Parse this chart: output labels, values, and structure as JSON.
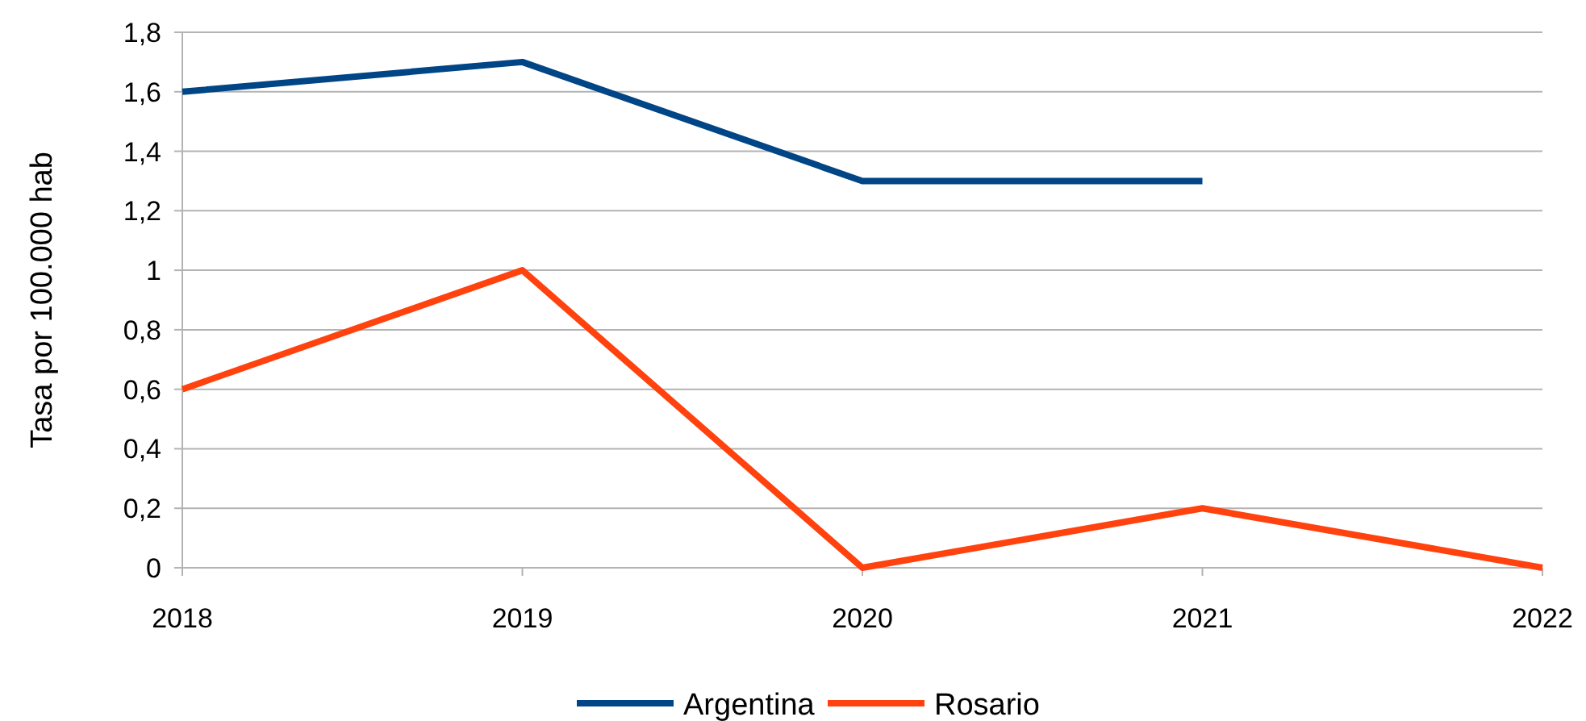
{
  "chart_data": {
    "type": "line",
    "ylabel": "Tasa por 100.000 hab",
    "x": [
      2018,
      2019,
      2020,
      2021,
      2022
    ],
    "xlim": [
      2018,
      2022
    ],
    "xticks": [
      2018,
      2019,
      2020,
      2021,
      2022
    ],
    "ylim": [
      0,
      1.8
    ],
    "yticks": [
      {
        "value": 0,
        "label": "0"
      },
      {
        "value": 0.2,
        "label": "0,2"
      },
      {
        "value": 0.4,
        "label": "0,4"
      },
      {
        "value": 0.6,
        "label": "0,6"
      },
      {
        "value": 0.8,
        "label": "0,8"
      },
      {
        "value": 1,
        "label": "1"
      },
      {
        "value": 1.2,
        "label": "1,2"
      },
      {
        "value": 1.4,
        "label": "1,4"
      },
      {
        "value": 1.6,
        "label": "1,6"
      },
      {
        "value": 1.8,
        "label": "1,8"
      }
    ],
    "grid": "y",
    "legend": "bottom",
    "marker": "none",
    "line_style": "solid",
    "series": [
      {
        "name": "Argentina",
        "color": "#004586",
        "values": [
          1.6,
          1.7,
          1.3,
          1.3,
          null
        ]
      },
      {
        "name": "Rosario",
        "color": "#ff420e",
        "values": [
          0.6,
          1,
          0,
          0.2,
          0
        ]
      }
    ]
  }
}
